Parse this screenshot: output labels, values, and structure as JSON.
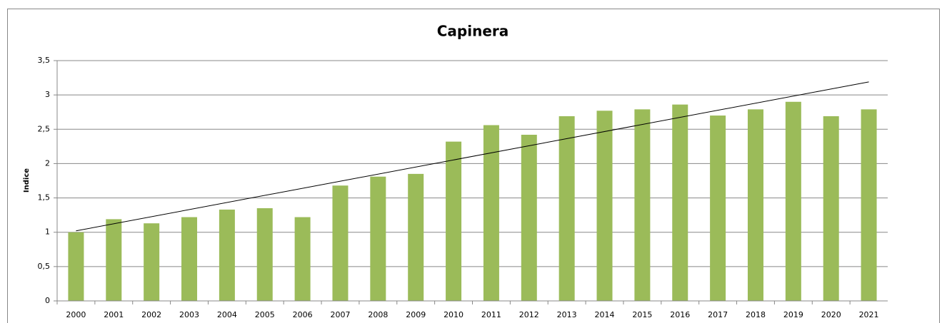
{
  "chart_data": {
    "type": "bar",
    "title": "Capinera",
    "y_label": "Indice",
    "categories": [
      "2000",
      "2001",
      "2002",
      "2003",
      "2004",
      "2005",
      "2006",
      "2007",
      "2008",
      "2009",
      "2010",
      "2011",
      "2012",
      "2013",
      "2014",
      "2015",
      "2016",
      "2017",
      "2018",
      "2019",
      "2020",
      "2021"
    ],
    "values": [
      1.0,
      1.19,
      1.13,
      1.22,
      1.33,
      1.35,
      1.22,
      1.68,
      1.81,
      1.85,
      2.32,
      2.56,
      2.42,
      2.69,
      2.77,
      2.79,
      2.86,
      2.7,
      2.79,
      2.9,
      2.69,
      2.79
    ],
    "color": "#9bbb59",
    "trend_line": [
      1.02,
      3.19
    ],
    "trend_color": "#000000",
    "ylim": [
      0,
      3.5
    ],
    "yticks": [
      0,
      {
        "value": 0.5,
        "label": "0,5"
      },
      1,
      {
        "value": 1.5,
        "label": "1,5"
      },
      2,
      {
        "value": 2.5,
        "label": "2,5"
      },
      3,
      {
        "value": 3.5,
        "label": "3,5"
      }
    ],
    "grid": true
  }
}
